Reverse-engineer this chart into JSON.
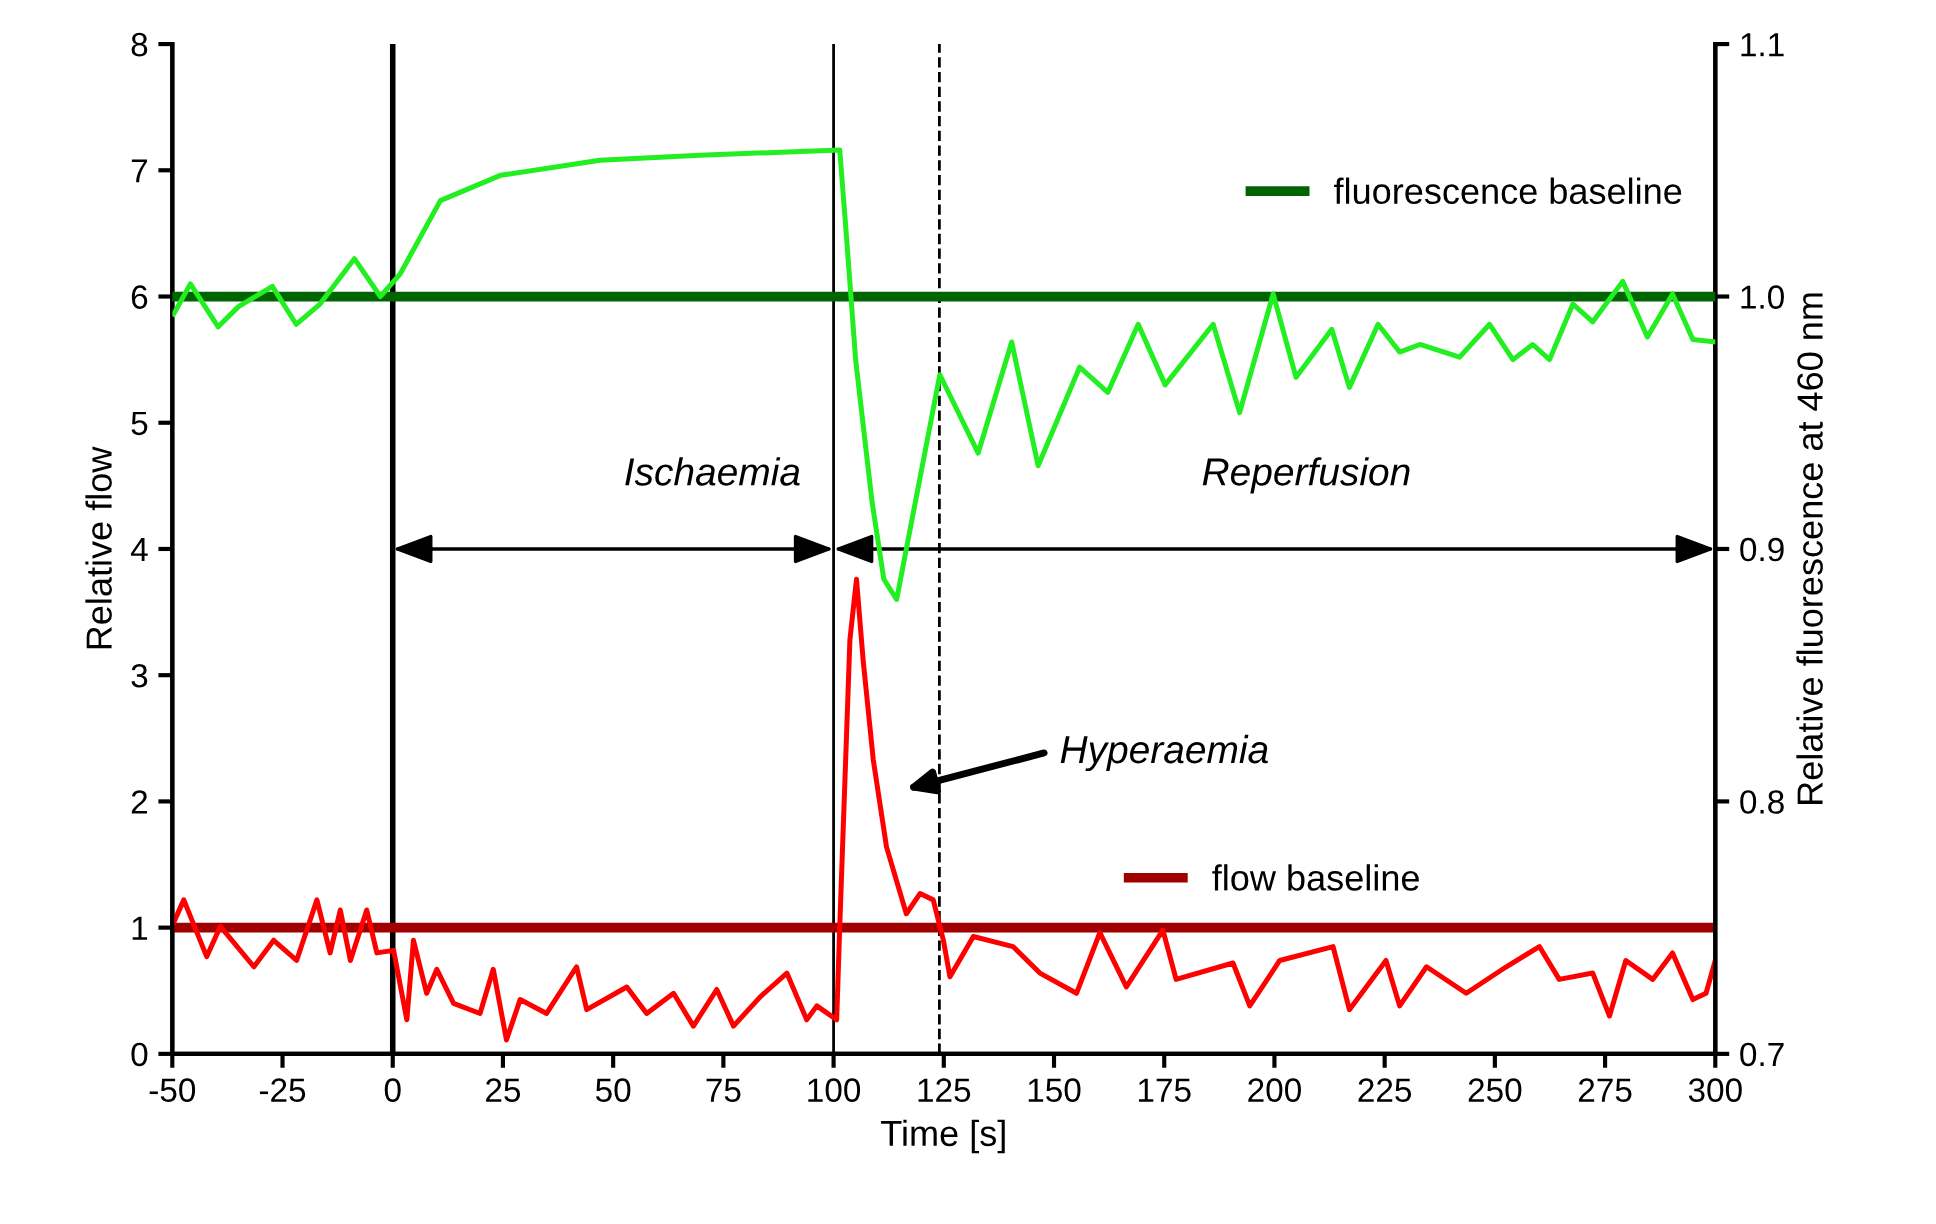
{
  "chart_data": {
    "type": "line",
    "xlabel": "Time [s]",
    "ylabel": "Relative flow",
    "y2label": "Relative fluorescence at 460 nm",
    "xlim": [
      -50,
      300
    ],
    "xticks": [
      -50,
      -25,
      0,
      25,
      50,
      75,
      100,
      125,
      150,
      175,
      200,
      225,
      250,
      275,
      300
    ],
    "ylim": [
      0,
      8
    ],
    "yticks": [
      0,
      1,
      2,
      3,
      4,
      5,
      6,
      7,
      8
    ],
    "y2lim": [
      0.7,
      1.1
    ],
    "y2ticks": [
      0.7,
      0.8,
      0.9,
      {
        "value": 1.0,
        "label": "1.0"
      },
      1.1
    ],
    "grid": false,
    "legend": "right",
    "line_style": "solid",
    "marker": "none",
    "series": [
      {
        "axis": "y2",
        "color": "#22ee22",
        "x": [
          -49.7,
          -45.9,
          -39.6,
          -35.0,
          -27.3,
          -21.9,
          -16.5,
          -8.7,
          -2.8,
          1.7,
          10.8,
          24.4,
          47.0,
          69.7,
          101.4,
          103,
          105,
          108.7,
          111.4,
          114.3,
          124.1,
          132.8,
          140.4,
          146.4,
          155.8,
          162.2,
          169.1,
          175.2,
          186.1,
          192.1,
          199.7,
          204.9,
          213.0,
          217.0,
          223.5,
          228.4,
          233.0,
          242.0,
          248.8,
          254.1,
          258.6,
          262.4,
          267.7,
          272.2,
          279.0,
          284.6,
          290.3,
          294.9,
          300
        ],
        "values": [
          0.993,
          1.005,
          0.988,
          0.996,
          1.004,
          0.989,
          0.997,
          1.015,
          1.0,
          1.009,
          1.038,
          1.048,
          1.054,
          1.056,
          1.058,
          1.022,
          0.975,
          0.919,
          0.888,
          0.88,
          0.969,
          0.938,
          0.982,
          0.933,
          0.972,
          0.962,
          0.989,
          0.965,
          0.989,
          0.954,
          1.001,
          0.968,
          0.987,
          0.964,
          0.989,
          0.978,
          0.981,
          0.976,
          0.989,
          0.975,
          0.981,
          0.975,
          0.997,
          0.99,
          1.006,
          0.984,
          1.001,
          0.983,
          0.982
        ]
      },
      {
        "axis": "y",
        "color": "#ff0000",
        "x": [
          -49.7,
          -47.4,
          -42.2,
          -39.1,
          -31.5,
          -27,
          -21.8,
          -17.2,
          -14.2,
          -11.9,
          -9.6,
          -5.9,
          -3.6,
          0.2,
          3.2,
          4.7,
          7.7,
          10.0,
          13.8,
          19.8,
          22.8,
          25.8,
          28.9,
          34.9,
          41.7,
          44.0,
          53.1,
          57.6,
          63.7,
          68.2,
          73.5,
          77.3,
          83.3,
          89.4,
          93.9,
          96.2,
          100.7,
          101.4,
          103.7,
          105.2,
          106.7,
          109,
          112,
          116.5,
          119.6,
          122.6,
          124.9,
          126.4,
          131.7,
          140.7,
          146.8,
          155.1,
          160.4,
          166.4,
          174.7,
          177.7,
          190.6,
          194.4,
          201.2,
          213.3,
          217.0,
          225.3,
          228.4,
          234.5,
          243.5,
          252.6,
          260.1,
          264.6,
          272.2,
          276.0,
          279.7,
          285.8,
          290.3,
          294.9,
          297.9,
          300
        ],
        "values": [
          1.04,
          1.22,
          0.77,
          1.01,
          0.69,
          0.9,
          0.74,
          1.22,
          0.8,
          1.14,
          0.74,
          1.14,
          0.8,
          0.82,
          0.27,
          0.9,
          0.48,
          0.67,
          0.4,
          0.32,
          0.67,
          0.11,
          0.43,
          0.32,
          0.69,
          0.35,
          0.53,
          0.32,
          0.48,
          0.22,
          0.51,
          0.22,
          0.45,
          0.64,
          0.27,
          0.38,
          0.27,
          1.01,
          3.28,
          3.76,
          3.12,
          2.33,
          1.64,
          1.11,
          1.27,
          1.22,
          0.9,
          0.61,
          0.93,
          0.85,
          0.64,
          0.48,
          0.96,
          0.53,
          0.98,
          0.59,
          0.72,
          0.38,
          0.74,
          0.85,
          0.35,
          0.74,
          0.38,
          0.69,
          0.48,
          0.69,
          0.85,
          0.59,
          0.64,
          0.3,
          0.74,
          0.59,
          0.8,
          0.43,
          0.48,
          0.74
        ]
      },
      {
        "name": "fluorescence baseline",
        "axis": "y2",
        "color": "#006400",
        "x": [
          -50,
          300
        ],
        "values": [
          1.0,
          1.0
        ]
      },
      {
        "name": "flow baseline",
        "axis": "y",
        "color": "#a00000",
        "x": [
          -50,
          300
        ],
        "values": [
          1,
          1
        ]
      }
    ],
    "ref_lines": [
      {
        "axis": "x",
        "value": 0,
        "color": "#000000",
        "line_style": "solid"
      },
      {
        "axis": "x",
        "value": 100,
        "color": "#000000",
        "line_style": "solid"
      },
      {
        "axis": "x",
        "value": 124,
        "color": "#000000",
        "line_style": "dashed"
      }
    ],
    "annotations": [
      "Ischaemia",
      "Reperfusion",
      "Hyperaemia"
    ]
  }
}
